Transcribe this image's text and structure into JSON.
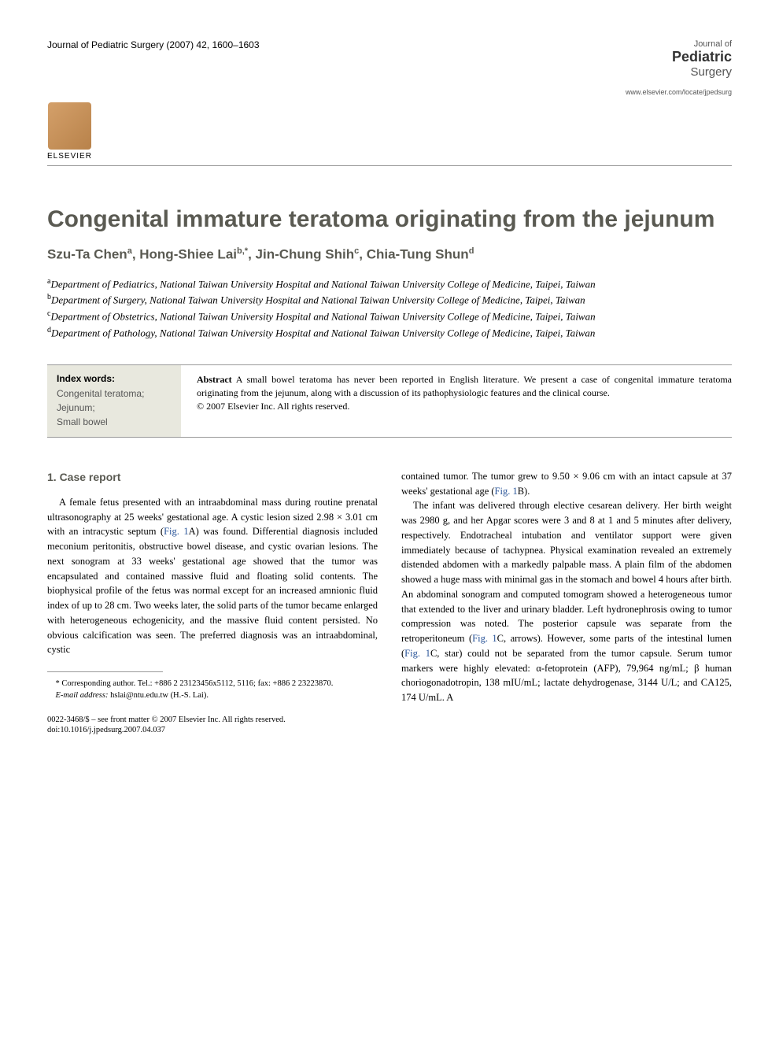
{
  "header": {
    "citation": "Journal of Pediatric Surgery (2007) 42, 1600–1603",
    "journal_small": "Journal of",
    "journal_main": "Pediatric",
    "journal_sub": "Surgery",
    "journal_url": "www.elsevier.com/locate/jpedsurg",
    "publisher": "ELSEVIER"
  },
  "article": {
    "title": "Congenital immature teratoma originating from the jejunum",
    "authors_html": "Szu-Ta Chen",
    "author1": "Szu-Ta Chen",
    "author1_sup": "a",
    "author2": "Hong-Shiee Lai",
    "author2_sup": "b,*",
    "author3": "Jin-Chung Shih",
    "author3_sup": "c",
    "author4": "Chia-Tung Shun",
    "author4_sup": "d"
  },
  "affiliations": {
    "a_sup": "a",
    "a": "Department of Pediatrics, National Taiwan University Hospital and National Taiwan University College of Medicine, Taipei, Taiwan",
    "b_sup": "b",
    "b": "Department of Surgery, National Taiwan University Hospital and National Taiwan University College of Medicine, Taipei, Taiwan",
    "c_sup": "c",
    "c": "Department of Obstetrics, National Taiwan University Hospital and National Taiwan University College of Medicine, Taipei, Taiwan",
    "d_sup": "d",
    "d": "Department of Pathology, National Taiwan University Hospital and National Taiwan University College of Medicine, Taipei, Taiwan"
  },
  "index": {
    "title": "Index words:",
    "words": "Congenital teratoma;\nJejunum;\nSmall bowel"
  },
  "abstract": {
    "label": "Abstract",
    "text": " A small bowel teratoma has never been reported in English literature. We present a case of congenital immature teratoma originating from the jejunum, along with a discussion of its pathophysiologic features and the clinical course.",
    "copyright": "© 2007 Elsevier Inc. All rights reserved."
  },
  "body": {
    "section1_heading": "1. Case report",
    "col1_p1a": "A female fetus presented with an intraabdominal mass during routine prenatal ultrasonography at 25 weeks' gestational age. A cystic lesion sized 2.98 × 3.01 cm with an intracystic septum (",
    "col1_fig1a": "Fig. 1",
    "col1_p1b": "A) was found. Differential diagnosis included meconium peritonitis, obstructive bowel disease, and cystic ovarian lesions. The next sonogram at 33 weeks' gestational age showed that the tumor was encapsulated and contained massive fluid and floating solid contents. The biophysical profile of the fetus was normal except for an increased amnionic fluid index of up to 28 cm. Two weeks later, the solid parts of the tumor became enlarged with heterogeneous echogenicity, and the massive fluid content persisted. No obvious calcification was seen. The preferred diagnosis was an intraabdominal, cystic",
    "col2_p0a": "contained tumor. The tumor grew to 9.50 × 9.06 cm with an intact capsule at 37 weeks' gestational age (",
    "col2_fig1b": "Fig. 1",
    "col2_p0b": "B).",
    "col2_p1a": "The infant was delivered through elective cesarean delivery. Her birth weight was 2980 g, and her Apgar scores were 3 and 8 at 1 and 5 minutes after delivery, respectively. Endotracheal intubation and ventilator support were given immediately because of tachypnea. Physical examination revealed an extremely distended abdomen with a markedly palpable mass. A plain film of the abdomen showed a huge mass with minimal gas in the stomach and bowel 4 hours after birth. An abdominal sonogram and computed tomogram showed a heterogeneous tumor that extended to the liver and urinary bladder. Left hydronephrosis owing to tumor compression was noted. The posterior capsule was separate from the retroperitoneum (",
    "col2_fig1c": "Fig. 1",
    "col2_p1b": "C, arrows). However, some parts of the intestinal lumen (",
    "col2_fig1c2": "Fig. 1",
    "col2_p1c": "C, star) could not be separated from the tumor capsule. Serum tumor markers were highly elevated: α-fetoprotein (AFP), 79,964 ng/mL; β human choriogonadotropin, 138 mIU/mL; lactate dehydrogenase, 3144 U/L; and CA125, 174 U/mL. A"
  },
  "footnote": {
    "corr": "* Corresponding author. Tel.: +886 2 23123456x5112, 5116; fax: +886 2 23223870.",
    "email_label": "E-mail address:",
    "email": " hslai@ntu.edu.tw (H.-S. Lai).",
    "issn": "0022-3468/$ – see front matter © 2007 Elsevier Inc. All rights reserved.",
    "doi": "doi:10.1016/j.jpedsurg.2007.04.037"
  },
  "colors": {
    "heading": "#5a5a52",
    "link": "#2a5599",
    "index_bg": "#e8e8de",
    "rule": "#999999"
  }
}
